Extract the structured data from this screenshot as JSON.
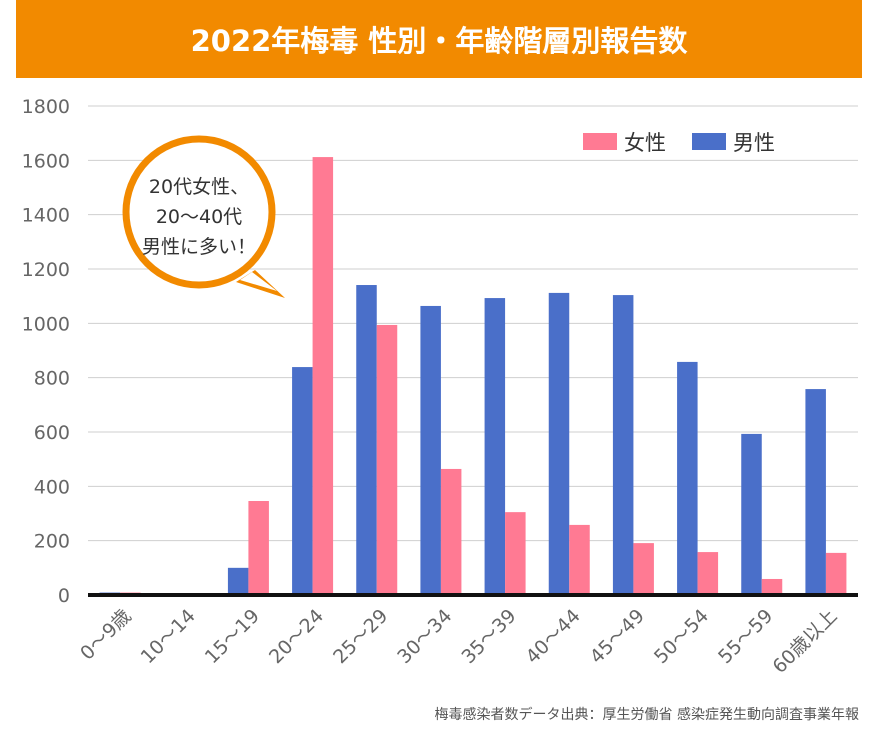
{
  "chart_data": {
    "type": "bar",
    "title": "2022年梅毒 性別・年齢階層別報告数",
    "categories": [
      "0〜9歳",
      "10〜14",
      "15〜19",
      "20〜24",
      "25〜29",
      "30〜34",
      "35〜39",
      "40〜44",
      "45〜49",
      "50〜54",
      "55〜59",
      "60歳以上"
    ],
    "series": [
      {
        "name": "男性",
        "color": "#4a6fc9",
        "values": [
          9,
          0,
          100,
          839,
          1141,
          1064,
          1093,
          1112,
          1104,
          858,
          593,
          758
        ]
      },
      {
        "name": "女性",
        "color": "#ff7a93",
        "values": [
          9,
          5,
          346,
          1612,
          994,
          464,
          305,
          258,
          191,
          158,
          59,
          155
        ]
      }
    ],
    "ylim": [
      0,
      1800
    ],
    "yticks": [
      0,
      200,
      400,
      600,
      800,
      1000,
      1200,
      1400,
      1600,
      1800
    ],
    "grid": true,
    "legend_position": "top-right",
    "legend_order": [
      "女性",
      "男性"
    ],
    "annotation": [
      "20代女性、",
      "20〜40代",
      "男性に多い！"
    ],
    "annotation_color": "#f28a00",
    "source": "梅毒感染者数データ出典：厚生労働省 感染症発生動向調査事業年報"
  }
}
